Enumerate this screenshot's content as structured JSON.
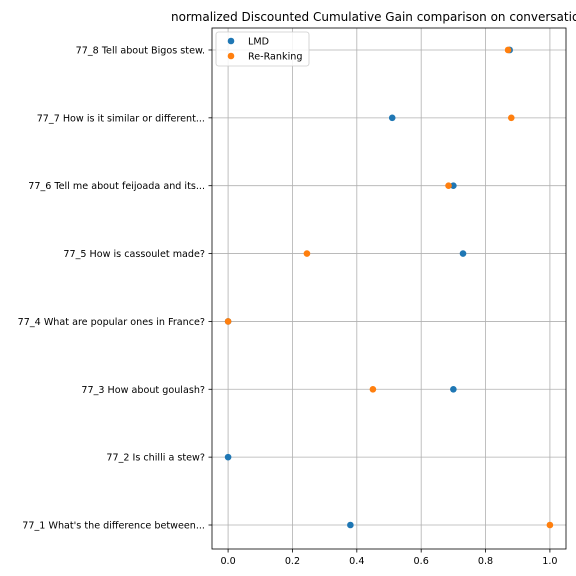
{
  "chart_data": {
    "type": "scatter",
    "title": "normalized Discounted Cumulative Gain comparison on conversatio",
    "xlabel": "",
    "ylabel": "",
    "xlim": [
      -0.05,
      1.05
    ],
    "x_ticks": [
      "0.0",
      "0.2",
      "0.4",
      "0.6",
      "0.8",
      "1.0"
    ],
    "x_tick_values": [
      0.0,
      0.2,
      0.4,
      0.6,
      0.8,
      1.0
    ],
    "categories": [
      "77_1 What's the difference between...",
      "77_2 Is chilli a stew?",
      "77_3 How about goulash?",
      "77_4 What are popular ones in France?",
      "77_5 How is cassoulet made?",
      "77_6 Tell me about feijoada and its...",
      "77_7 How is it similar or different...",
      "77_8 Tell about Bigos stew."
    ],
    "series": [
      {
        "name": "LMD",
        "color": "#1f77b4",
        "values": [
          0.38,
          0.0,
          0.7,
          0.0,
          0.73,
          0.7,
          0.51,
          0.875
        ]
      },
      {
        "name": "Re-Ranking",
        "color": "#ff7f0e",
        "values": [
          1.0,
          null,
          0.45,
          0.0,
          0.245,
          0.685,
          0.88,
          0.87
        ]
      }
    ],
    "grid": true,
    "legend_position": "top-left"
  }
}
